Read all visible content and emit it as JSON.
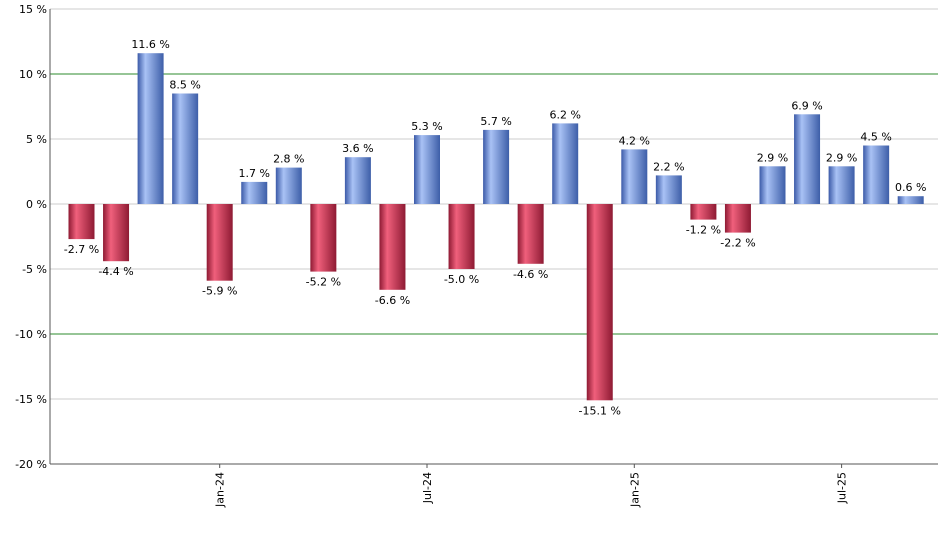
{
  "chart_data": {
    "type": "bar",
    "ylim": [
      -20,
      15
    ],
    "yticks": [
      15,
      10,
      5,
      0,
      -5,
      -10,
      -15,
      -20
    ],
    "ytick_labels": [
      "15 %",
      "10 %",
      "5 %",
      "0 %",
      "-5 %",
      "-10 %",
      "-15 %",
      "-20 %"
    ],
    "xtick_labels": [
      "Jan-24",
      "Jul-24",
      "Jan-25",
      "Jul-25"
    ],
    "xtick_bar_index": [
      4,
      10,
      16,
      22
    ],
    "values": [
      -2.7,
      -4.4,
      11.6,
      8.5,
      -5.9,
      1.7,
      2.8,
      -5.2,
      3.6,
      -6.6,
      5.3,
      -5.0,
      5.7,
      -4.6,
      6.2,
      -15.1,
      4.2,
      2.2,
      -1.2,
      -2.2,
      2.9,
      6.9,
      2.9,
      4.5,
      0.6
    ],
    "value_labels": [
      "-2.7 %",
      "-4.4 %",
      "11.6 %",
      "8.5 %",
      "-5.9 %",
      "1.7 %",
      "2.8 %",
      "-5.2 %",
      "3.6 %",
      "-6.6 %",
      "5.3 %",
      "-5.0 %",
      "5.7 %",
      "-4.6 %",
      "6.2 %",
      "-15.1 %",
      "4.2 %",
      "2.2 %",
      "-1.2 %",
      "-2.2 %",
      "2.9 %",
      "6.9 %",
      "2.9 %",
      "4.5 %",
      "0.6 %"
    ],
    "reference_lines": [
      10,
      -10
    ],
    "grid": true,
    "colors": {
      "positive": "#6f8fd8",
      "negative": "#c8364f",
      "reference": "#2e8b2e",
      "grid": "#cccccc",
      "axis": "#555555"
    }
  }
}
